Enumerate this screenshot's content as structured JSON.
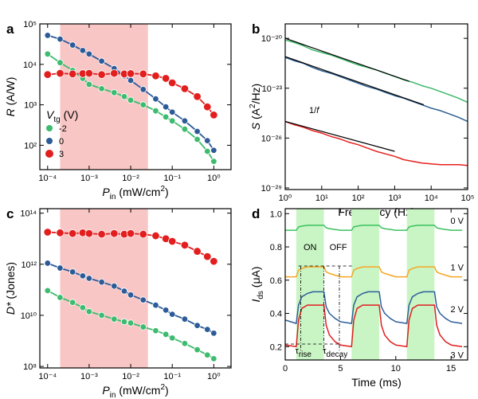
{
  "chart_data": [
    {
      "type": "scatter",
      "panel_label": "a",
      "xscale": "log",
      "yscale": "log",
      "x_label": [
        "P",
        "in",
        " (mW/cm",
        "2",
        ")"
      ],
      "y_label": [
        "R",
        " (A/W)"
      ],
      "xlim": [
        6.5e-05,
        2.6
      ],
      "ylim": [
        25,
        100000
      ],
      "xticks": [
        {
          "value": 0.0001,
          "label": "10⁻⁴"
        },
        {
          "value": 0.001,
          "label": "10⁻³"
        },
        {
          "value": 0.01,
          "label": "10⁻²"
        },
        {
          "value": 0.1,
          "label": "10⁻¹"
        },
        {
          "value": 1,
          "label": "10⁰"
        }
      ],
      "yticks": [
        {
          "value": 100,
          "label": "10²"
        },
        {
          "value": 1000,
          "label": "10³"
        },
        {
          "value": 10000,
          "label": "10⁴"
        },
        {
          "value": 100000,
          "label": "10⁵"
        }
      ],
      "shaded_range": [
        0.0002,
        0.026
      ],
      "shade_color": "#f9c6c6",
      "legend_title": [
        "V",
        "tg",
        " (V)"
      ],
      "legend": "lower left",
      "x": [
        0.0001,
        0.0002,
        0.0004,
        0.0007,
        0.001,
        0.002,
        0.004,
        0.007,
        0.01,
        0.02,
        0.04,
        0.07,
        0.1,
        0.2,
        0.4,
        0.7,
        1
      ],
      "series": [
        {
          "name": "-2",
          "color": "#3dbb6e",
          "values": [
            18000,
            11000,
            7100,
            4500,
            3200,
            2500,
            2000,
            1600,
            1300,
            1000,
            710,
            500,
            400,
            250,
            140,
            71,
            40
          ]
        },
        {
          "name": "0",
          "color": "#2c5b98",
          "values": [
            52000,
            42000,
            30000,
            22000,
            18000,
            12000,
            7900,
            5200,
            4000,
            2400,
            1400,
            890,
            660,
            400,
            220,
            130,
            75
          ]
        },
        {
          "name": "3",
          "color": "#e21e1e",
          "values": [
            5600,
            6000,
            5800,
            5900,
            6000,
            5600,
            6000,
            5800,
            5900,
            5800,
            5200,
            4500,
            3500,
            2500,
            1600,
            890,
            560
          ]
        }
      ]
    },
    {
      "type": "line",
      "panel_label": "b",
      "xscale": "log",
      "yscale": "log",
      "x_label": [
        "Frequency (Hz)"
      ],
      "y_label": [
        "S",
        " (A",
        "2",
        "/Hz)"
      ],
      "xlim": [
        1,
        100000
      ],
      "ylim": [
        8e-30,
        7.4e-20
      ],
      "xticks": [
        {
          "value": 1,
          "label": "10⁰"
        },
        {
          "value": 10,
          "label": "10¹"
        },
        {
          "value": 100,
          "label": "10²"
        },
        {
          "value": 1000,
          "label": "10³"
        },
        {
          "value": 10000,
          "label": "10⁴"
        },
        {
          "value": 100000,
          "label": "10⁵"
        }
      ],
      "yticks": [
        {
          "value": 1e-29,
          "label": "10⁻²⁹"
        },
        {
          "value": 1e-26,
          "label": "10⁻²⁶"
        },
        {
          "value": 1e-23,
          "label": "10⁻²³"
        },
        {
          "value": 1e-20,
          "label": "10⁻²⁰"
        }
      ],
      "annotation": [
        "1/",
        "f"
      ],
      "x": [
        1,
        1.78,
        3.16,
        5.62,
        10,
        17.8,
        31.6,
        56.2,
        100,
        178,
        316,
        562,
        1000,
        1780,
        3160,
        5620,
        10000,
        17800,
        31600,
        56200,
        100000
      ],
      "series": [
        {
          "color": "#3cb96a",
          "values": [
            7.94e-21,
            5.62e-21,
            3.55e-21,
            2e-21,
            1.41e-21,
            1e-21,
            6.31e-22,
            3.98e-22,
            2.51e-22,
            1.78e-22,
            1.26e-22,
            7.94e-23,
            5.01e-23,
            3.16e-23,
            2.24e-23,
            1.41e-23,
            1e-23,
            6.31e-24,
            3.98e-24,
            2.51e-24,
            1.41e-24
          ]
        },
        {
          "color": "#2b5d8f",
          "values": [
            7.08e-22,
            4.47e-22,
            3.16e-22,
            1.78e-22,
            1.12e-22,
            7.94e-23,
            5.01e-23,
            3.16e-23,
            2e-23,
            1.26e-23,
            8.91e-24,
            5.62e-24,
            3.55e-24,
            2.51e-24,
            1.58e-24,
            1e-24,
            6.31e-25,
            4.47e-25,
            2.82e-25,
            1.78e-25,
            1e-25
          ]
        },
        {
          "color": "#e8201c",
          "values": [
            1e-25,
            6.31e-26,
            4.47e-26,
            2.82e-26,
            2e-26,
            1.26e-26,
            8.91e-27,
            5.62e-27,
            3.98e-27,
            2.51e-27,
            1.58e-27,
            1.12e-27,
            7.94e-28,
            5.01e-28,
            3.98e-28,
            3.16e-28,
            2.82e-28,
            2.51e-28,
            2.51e-28,
            2.51e-28,
            2.24e-28
          ]
        }
      ],
      "fit_color": "#000000",
      "fits": [
        {
          "x": [
            1,
            2500
          ],
          "values": [
            1e-20,
            2.6e-23
          ]
        },
        {
          "x": [
            1,
            6300
          ],
          "values": [
            7.9e-22,
            1e-24
          ]
        },
        {
          "x": [
            1,
            1000
          ],
          "values": [
            1e-25,
            1.6e-27
          ]
        }
      ]
    },
    {
      "type": "scatter",
      "panel_label": "c",
      "xscale": "log",
      "yscale": "log",
      "x_label": [
        "P",
        "in",
        " (mW/cm",
        "2",
        ")"
      ],
      "y_label": [
        "D*",
        " (Jones)"
      ],
      "xlim": [
        6.5e-05,
        2.6
      ],
      "ylim": [
        87000000.0,
        150000000000000.0
      ],
      "xticks": [
        {
          "value": 0.0001,
          "label": "10⁻⁴"
        },
        {
          "value": 0.001,
          "label": "10⁻³"
        },
        {
          "value": 0.01,
          "label": "10⁻²"
        },
        {
          "value": 0.1,
          "label": "10⁻¹"
        },
        {
          "value": 1,
          "label": "10⁰"
        }
      ],
      "yticks": [
        {
          "value": 100000000,
          "label": "10⁸"
        },
        {
          "value": 10000000000,
          "label": "10¹⁰"
        },
        {
          "value": 1000000000000,
          "label": "10¹²"
        },
        {
          "value": 100000000000000,
          "label": "10¹⁴"
        }
      ],
      "shaded_range": [
        0.0002,
        0.026
      ],
      "shade_color": "#f9c6c6",
      "x": [
        0.0001,
        0.0002,
        0.0004,
        0.0007,
        0.001,
        0.002,
        0.004,
        0.007,
        0.01,
        0.02,
        0.04,
        0.07,
        0.1,
        0.2,
        0.4,
        0.7,
        1
      ],
      "series": [
        {
          "color": "#3dbb6e",
          "values": [
            93000000000.0,
            50000000000.0,
            32000000000.0,
            20000000000.0,
            14000000000.0,
            10000000000.0,
            7100000000.0,
            5600000000.0,
            5000000000.0,
            3500000000.0,
            2500000000.0,
            1800000000.0,
            1300000000.0,
            790000000.0,
            450000000.0,
            280000000.0,
            200000000.0
          ]
        },
        {
          "color": "#2c5b98",
          "values": [
            1100000000000.0,
            710000000000.0,
            500000000000.0,
            350000000000.0,
            280000000000.0,
            200000000000.0,
            140000000000.0,
            89000000000.0,
            63000000000.0,
            40000000000.0,
            25000000000.0,
            16000000000.0,
            11000000000.0,
            7100000000.0,
            4000000000.0,
            2800000000.0,
            2000000000.0
          ]
        },
        {
          "color": "#e21e1e",
          "values": [
            18000000000000.0,
            17000000000000.0,
            16000000000000.0,
            17000000000000.0,
            16000000000000.0,
            15000000000000.0,
            16000000000000.0,
            15000000000000.0,
            16000000000000.0,
            15000000000000.0,
            13000000000000.0,
            10000000000000.0,
            7900000000000.0,
            5600000000000.0,
            3200000000000.0,
            2000000000000.0,
            1300000000000.0
          ]
        }
      ]
    },
    {
      "type": "line",
      "panel_label": "d",
      "xscale": "linear",
      "yscale": "linear",
      "x_label": [
        "Time (ms)"
      ],
      "y_label": [
        "I",
        "ds",
        " (μA)"
      ],
      "xlim": [
        0,
        16.5
      ],
      "ylim": [
        0.12,
        1.03
      ],
      "xticks": [
        0,
        5,
        10,
        15
      ],
      "yticks": [
        0.2,
        0.4,
        0.6,
        0.8,
        {
          "value": 1,
          "label": "1.0"
        }
      ],
      "shaded_ranges": [
        [
          1,
          3.5
        ],
        [
          6,
          8.5
        ],
        [
          11,
          13.5
        ]
      ],
      "shade_color": "#c9f5c4",
      "annotations": [
        "ON",
        "OFF"
      ],
      "tau_rise": [
        "τ",
        "rise"
      ],
      "tau_decay": [
        "τ",
        "decay"
      ],
      "x": [
        0,
        1,
        1.2,
        1.5,
        2,
        2.5,
        3.5,
        3.7,
        4,
        4.5,
        5,
        6,
        6.2,
        6.5,
        7,
        7.5,
        8.5,
        8.7,
        9,
        9.5,
        10,
        11,
        11.2,
        11.5,
        12,
        12.5,
        13.5,
        13.7,
        14,
        14.5,
        15,
        16
      ],
      "series": [
        {
          "name": "0 V",
          "color": "#3cc060",
          "values": [
            0.9,
            0.9,
            0.92,
            0.925,
            0.93,
            0.93,
            0.93,
            0.915,
            0.91,
            0.905,
            0.9,
            0.9,
            0.92,
            0.925,
            0.93,
            0.93,
            0.93,
            0.915,
            0.91,
            0.905,
            0.9,
            0.9,
            0.92,
            0.925,
            0.93,
            0.93,
            0.93,
            0.915,
            0.91,
            0.905,
            0.9,
            0.9
          ]
        },
        {
          "name": "1 V",
          "color": "#f5a623",
          "values": [
            0.62,
            0.62,
            0.66,
            0.67,
            0.68,
            0.68,
            0.68,
            0.65,
            0.64,
            0.63,
            0.62,
            0.62,
            0.66,
            0.67,
            0.68,
            0.68,
            0.68,
            0.65,
            0.64,
            0.63,
            0.62,
            0.62,
            0.66,
            0.67,
            0.68,
            0.68,
            0.68,
            0.65,
            0.64,
            0.63,
            0.62,
            0.62
          ]
        },
        {
          "name": "2 V",
          "color": "#2e5f9b",
          "values": [
            0.36,
            0.34,
            0.45,
            0.5,
            0.52,
            0.53,
            0.53,
            0.44,
            0.4,
            0.37,
            0.35,
            0.34,
            0.45,
            0.5,
            0.52,
            0.53,
            0.53,
            0.44,
            0.4,
            0.37,
            0.35,
            0.34,
            0.45,
            0.5,
            0.52,
            0.53,
            0.53,
            0.44,
            0.4,
            0.37,
            0.35,
            0.34
          ]
        },
        {
          "name": "3 V",
          "color": "#e01e1e",
          "values": [
            0.21,
            0.2,
            0.36,
            0.43,
            0.45,
            0.45,
            0.45,
            0.33,
            0.27,
            0.23,
            0.21,
            0.2,
            0.36,
            0.43,
            0.45,
            0.45,
            0.45,
            0.33,
            0.27,
            0.23,
            0.21,
            0.2,
            0.36,
            0.43,
            0.45,
            0.45,
            0.45,
            0.33,
            0.27,
            0.23,
            0.21,
            0.2
          ]
        }
      ]
    }
  ]
}
